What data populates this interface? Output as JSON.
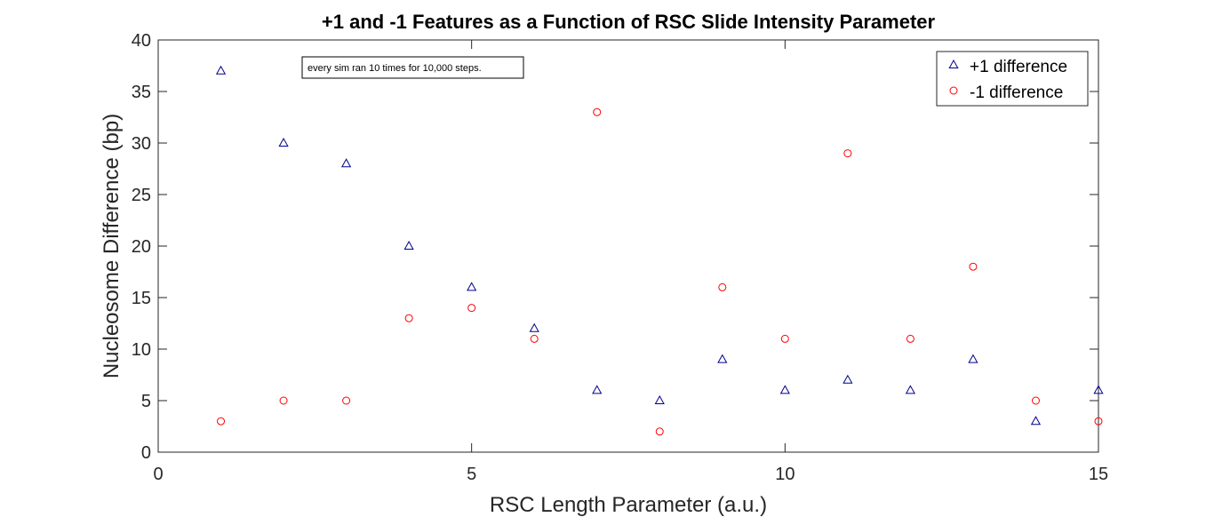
{
  "chart_data": {
    "type": "scatter",
    "title": "+1 and -1 Features as a Function of RSC Slide Intensity Parameter",
    "xlabel": "RSC Length Parameter (a.u.)",
    "ylabel": "Nucleosome Difference (bp)",
    "xlim": [
      0,
      15
    ],
    "ylim": [
      0,
      40
    ],
    "xticks": [
      0,
      5,
      10,
      15
    ],
    "yticks": [
      0,
      5,
      10,
      15,
      20,
      25,
      30,
      35,
      40
    ],
    "grid": false,
    "legend_position": "top-right",
    "annotation": "every sim ran 10 times for 10,000 steps.",
    "series": [
      {
        "name": "+1 difference",
        "marker": "triangle",
        "color": "#00008b",
        "x": [
          1,
          2,
          3,
          4,
          5,
          6,
          7,
          8,
          9,
          10,
          11,
          12,
          13,
          14,
          15
        ],
        "y": [
          37,
          30,
          28,
          20,
          16,
          12,
          6,
          5,
          9,
          6,
          7,
          6,
          9,
          3,
          6
        ]
      },
      {
        "name": "-1 difference",
        "marker": "circle",
        "color": "#ff0000",
        "x": [
          1,
          2,
          3,
          4,
          5,
          6,
          7,
          8,
          9,
          10,
          11,
          12,
          13,
          14,
          15
        ],
        "y": [
          3,
          5,
          5,
          13,
          14,
          11,
          33,
          2,
          16,
          11,
          29,
          11,
          18,
          5,
          3
        ]
      }
    ]
  }
}
